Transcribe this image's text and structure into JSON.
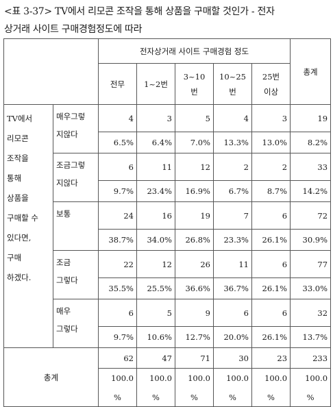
{
  "caption": {
    "line1": "<표 3-37> TV에서 리모콘 조작을 통해 상품을 구매할 것인가 - 전자",
    "line2": "상거래 사이트 구매경험정도에 따라"
  },
  "header": {
    "group_label": "전자상거래 사이트 구매경험 정도",
    "total_label": "총계",
    "columns": [
      {
        "line1": "전무",
        "line2": ""
      },
      {
        "line1": "1~2번",
        "line2": ""
      },
      {
        "line1": "3~10",
        "line2": "번"
      },
      {
        "line1": "10~25",
        "line2": "번"
      },
      {
        "line1": "25번",
        "line2": "이상"
      }
    ]
  },
  "row_question": {
    "lines": [
      "TV에서",
      "리모콘",
      "조작을",
      "통해",
      "상품을",
      "구매할 수",
      "있다면,",
      "구매",
      "하겠다."
    ]
  },
  "rows": [
    {
      "label_lines": [
        "매우그렇",
        "지않다"
      ],
      "counts": [
        "4",
        "3",
        "5",
        "4",
        "3",
        "19"
      ],
      "pcts": [
        "6.5%",
        "6.4%",
        "7.0%",
        "13.3%",
        "13.0%",
        "8.2%"
      ]
    },
    {
      "label_lines": [
        "조금그렇",
        "지않다"
      ],
      "counts": [
        "6",
        "11",
        "12",
        "2",
        "2",
        "33"
      ],
      "pcts": [
        "9.7%",
        "23.4%",
        "16.9%",
        "6.7%",
        "8.7%",
        "14.2%"
      ]
    },
    {
      "label_lines": [
        "보통",
        ""
      ],
      "counts": [
        "24",
        "16",
        "19",
        "7",
        "6",
        "72"
      ],
      "pcts": [
        "38.7%",
        "34.0%",
        "26.8%",
        "23.3%",
        "26.1%",
        "30.9%"
      ]
    },
    {
      "label_lines": [
        "조금",
        "그렇다"
      ],
      "counts": [
        "22",
        "12",
        "26",
        "11",
        "6",
        "77"
      ],
      "pcts": [
        "35.5%",
        "25.5%",
        "36.6%",
        "36.7%",
        "26.1%",
        "33.0%"
      ]
    },
    {
      "label_lines": [
        "매우",
        "그렇다"
      ],
      "counts": [
        "6",
        "5",
        "9",
        "6",
        "6",
        "32"
      ],
      "pcts": [
        "9.7%",
        "10.6%",
        "12.7%",
        "20.0%",
        "26.1%",
        "13.7%"
      ]
    }
  ],
  "totals": {
    "label": "총계",
    "counts": [
      "62",
      "47",
      "71",
      "30",
      "23",
      "233"
    ],
    "pcts_value": [
      "100.0",
      "100.0",
      "100.0",
      "100.0",
      "100.0",
      "100.0"
    ],
    "pct_sign": "%"
  }
}
